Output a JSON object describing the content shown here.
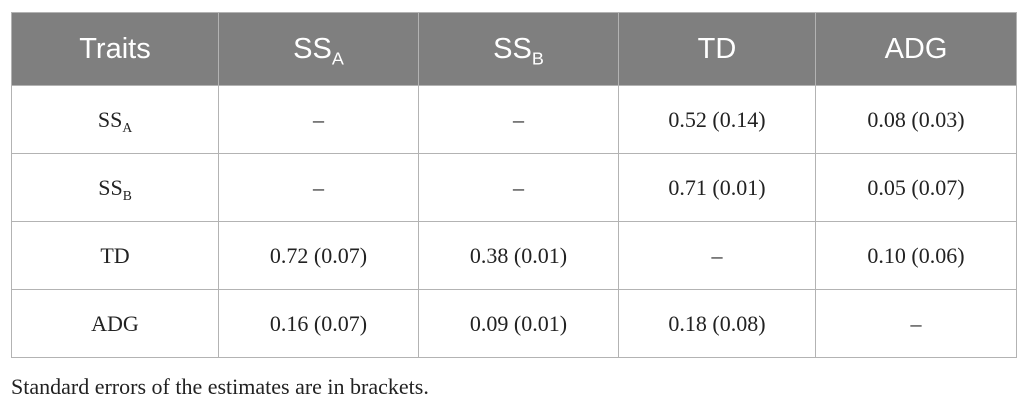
{
  "table": {
    "header": [
      {
        "text": "Traits"
      },
      {
        "text": "SS",
        "sub": "A"
      },
      {
        "text": "SS",
        "sub": "B"
      },
      {
        "text": "TD"
      },
      {
        "text": "ADG"
      }
    ],
    "rows": [
      [
        {
          "text": "SS",
          "sub": "A"
        },
        "–",
        "–",
        "0.52 (0.14)",
        "0.08 (0.03)"
      ],
      [
        {
          "text": "SS",
          "sub": "B"
        },
        "–",
        "–",
        "0.71 (0.01)",
        "0.05 (0.07)"
      ],
      [
        {
          "text": "TD"
        },
        "0.72 (0.07)",
        "0.38 (0.01)",
        "–",
        "0.10 (0.06)"
      ],
      [
        {
          "text": "ADG"
        },
        "0.16 (0.07)",
        "0.09 (0.01)",
        "0.18 (0.08)",
        "–"
      ]
    ]
  },
  "footnote": "Standard errors of the estimates are in brackets."
}
